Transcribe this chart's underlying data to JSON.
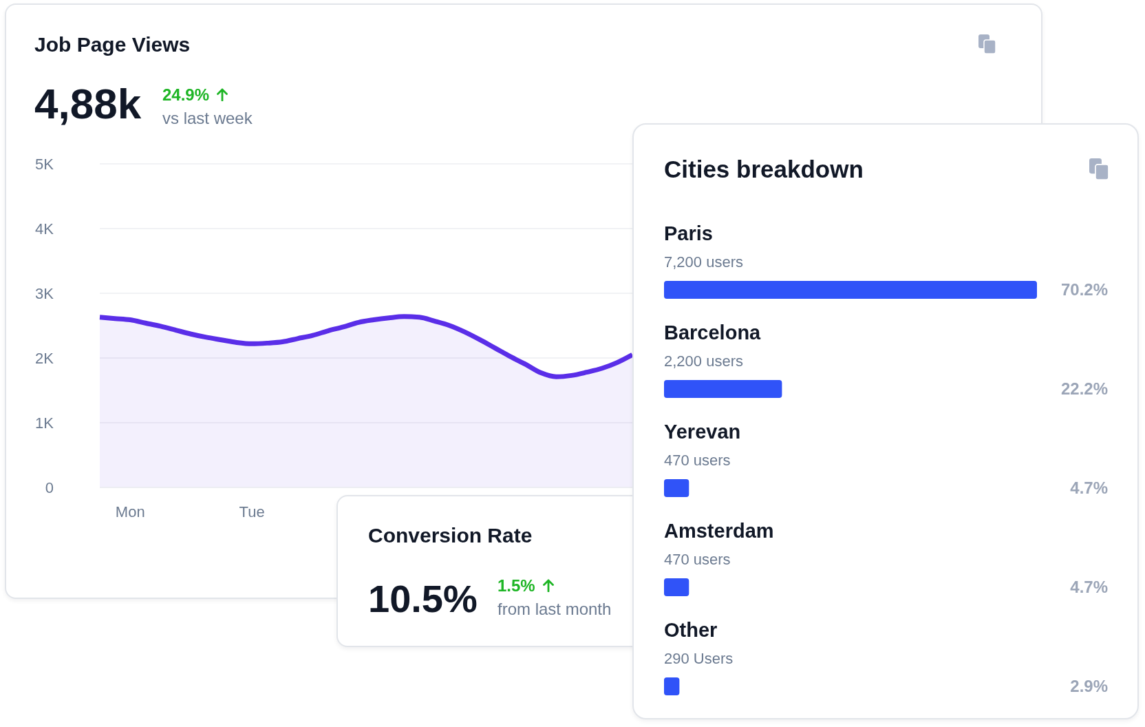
{
  "chart_data": [
    {
      "type": "area",
      "title": "Job Page Views",
      "annotations": [
        "4,88k",
        "24.9%",
        "vs last week"
      ],
      "categories": [
        null,
        null,
        "Mon",
        null,
        null,
        null,
        null,
        null,
        null,
        null,
        "Tue",
        null,
        null,
        null,
        null,
        null,
        null,
        null,
        null,
        null,
        null,
        null,
        null,
        null,
        null,
        null,
        null,
        null,
        null,
        null,
        null,
        null,
        null,
        null,
        null,
        null
      ],
      "values": [
        2630,
        2610,
        2590,
        2540,
        2490,
        2430,
        2370,
        2320,
        2280,
        2240,
        2220,
        2230,
        2250,
        2300,
        2350,
        2420,
        2480,
        2550,
        2590,
        2620,
        2640,
        2630,
        2570,
        2500,
        2400,
        2280,
        2150,
        2020,
        1900,
        1770,
        1710,
        1730,
        1780,
        1840,
        1930,
        2050
      ],
      "color": "#5a2ee8",
      "ylim": [
        0,
        5000
      ],
      "yticks": [
        0,
        {
          "value": 1000,
          "label": "1K"
        },
        {
          "value": 2000,
          "label": "2K"
        },
        {
          "value": 3000,
          "label": "3K"
        },
        {
          "value": 4000,
          "label": "4K"
        },
        {
          "value": 5000,
          "label": "5K"
        }
      ],
      "grid": "y"
    },
    {
      "type": "bar",
      "orientation": "horizontal",
      "title": "Cities breakdown",
      "categories": [
        "Paris",
        "Barcelona",
        "Yerevan",
        "Amsterdam",
        "Other"
      ],
      "values": [
        70.2,
        22.2,
        4.7,
        4.7,
        2.9
      ],
      "color": "#3053f8",
      "value_labels": [
        "70.2%",
        "22.2%",
        "4.7%",
        "4.7%",
        "2.9%"
      ],
      "annotations": [
        "7,200 users",
        "2,200 users",
        "470 users",
        "470 users",
        "290 Users"
      ],
      "tick_labels": "y"
    },
    {
      "type": "other",
      "title": "Conversion Rate",
      "annotations": [
        "10.5%",
        "1.5%",
        "from last month"
      ]
    }
  ]
}
